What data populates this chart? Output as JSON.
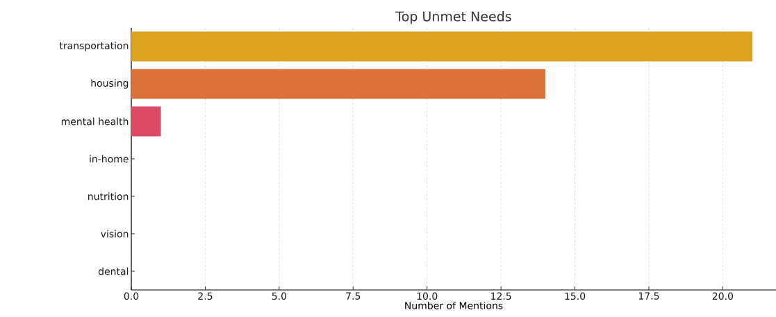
{
  "chart_data": {
    "type": "bar",
    "orientation": "horizontal",
    "title": "Top Unmet Needs",
    "xlabel": "Number of Mentions",
    "categories": [
      "transportation",
      "housing",
      "mental health",
      "in-home",
      "nutrition",
      "vision",
      "dental"
    ],
    "values": [
      21,
      14,
      1,
      0,
      0,
      0,
      0
    ],
    "colors": [
      "#dea321",
      "#db723c",
      "#dc4a66",
      "#b2428f",
      "#7a46a8",
      "#4a5fb0",
      "#2a8cb5"
    ],
    "xlim": [
      0,
      21.8
    ],
    "xticks": [
      {
        "value": 0,
        "label": "0.0"
      },
      {
        "value": 2.5,
        "label": "2.5"
      },
      {
        "value": 5,
        "label": "5.0"
      },
      {
        "value": 7.5,
        "label": "7.5"
      },
      {
        "value": 10,
        "label": "10.0"
      },
      {
        "value": 12.5,
        "label": "12.5"
      },
      {
        "value": 15,
        "label": "15.0"
      },
      {
        "value": 17.5,
        "label": "17.5"
      },
      {
        "value": 20,
        "label": "20.0"
      }
    ],
    "grid": "x"
  }
}
